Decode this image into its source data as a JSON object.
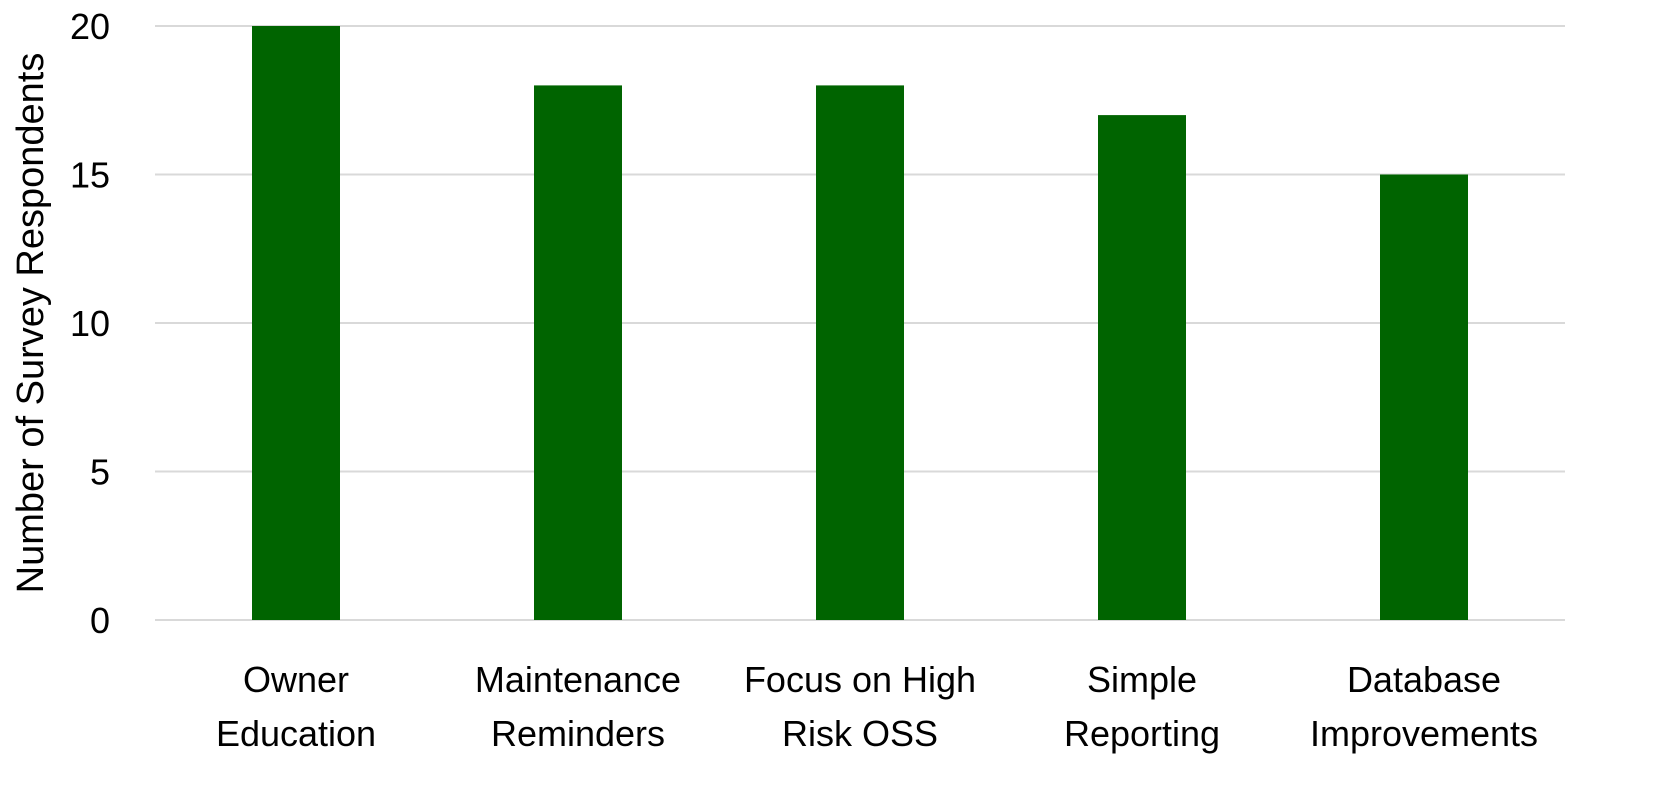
{
  "chart_data": {
    "type": "bar",
    "title": "",
    "xlabel": "",
    "ylabel": "Number of Survey Respondents",
    "ylim": [
      0,
      20
    ],
    "yticks": [
      0,
      5,
      10,
      15,
      20
    ],
    "grid": true,
    "legend": "none",
    "categories": [
      [
        "Owner",
        "Education"
      ],
      [
        "Maintenance",
        "Reminders"
      ],
      [
        "Focus on High",
        "Risk OSS"
      ],
      [
        "Simple",
        "Reporting"
      ],
      [
        "Database",
        "Improvements"
      ]
    ],
    "values": [
      20,
      18,
      18,
      17,
      15
    ],
    "colors": {
      "bar": "#006400",
      "grid": "#d9d9d9",
      "axis": "#d9d9d9",
      "text": "#000000"
    }
  }
}
